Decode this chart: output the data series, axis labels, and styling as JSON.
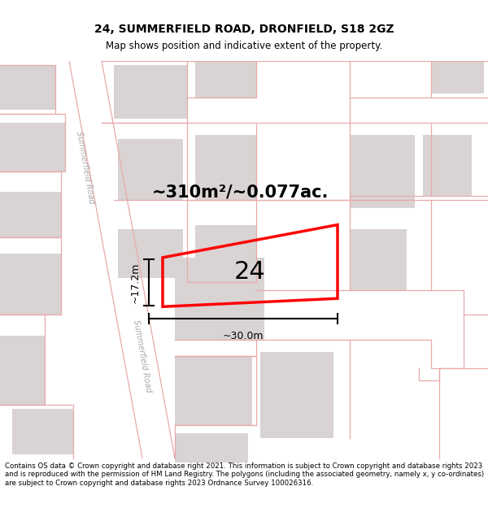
{
  "title": "24, SUMMERFIELD ROAD, DRONFIELD, S18 2GZ",
  "subtitle": "Map shows position and indicative extent of the property.",
  "area_text": "~310m²/~0.077ac.",
  "label_24": "24",
  "dim_width": "~30.0m",
  "dim_height": "~17.2m",
  "footer": "Contains OS data © Crown copyright and database right 2021. This information is subject to Crown copyright and database rights 2023 and is reproduced with the permission of HM Land Registry. The polygons (including the associated geometry, namely x, y co-ordinates) are subject to Crown copyright and database rights 2023 Ordnance Survey 100026316.",
  "map_bg": "#f7f2f2",
  "road_bg": "#ffffff",
  "building_color": "#d9d3d3",
  "plot_edge_color": "#ff0000",
  "dim_color": "#000000",
  "boundary_color": "#e8aaaa",
  "road_label_color": "#aaaaaa",
  "road_label1": "Summerfield Road",
  "road_label2": "Summerfield Road"
}
